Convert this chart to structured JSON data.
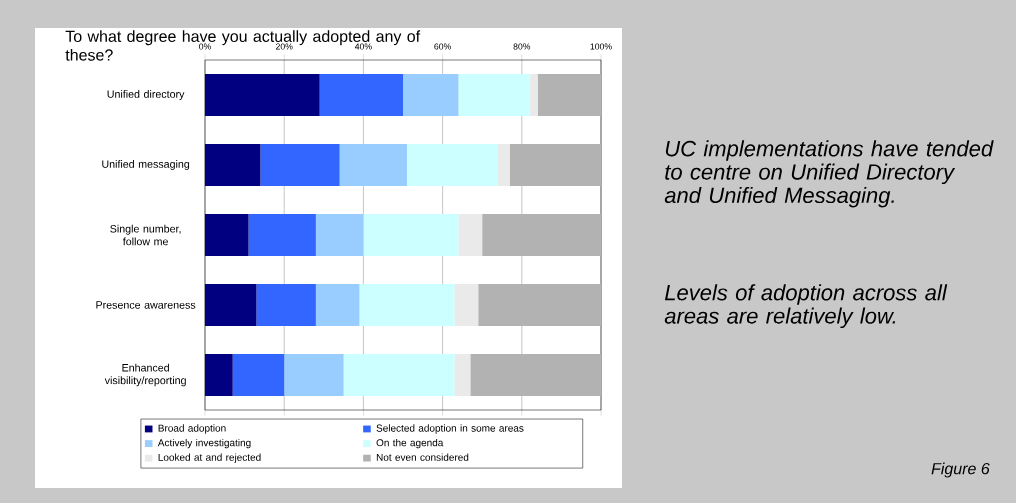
{
  "chart_data": {
    "type": "bar",
    "orientation": "horizontal",
    "stacked": true,
    "title": "To what degree have you actually adopted any of these?",
    "categories": [
      "Unified directory",
      "Unified messaging",
      "Single number, follow me",
      "Presence awareness",
      "Enhanced visibility/reporting"
    ],
    "series": [
      {
        "name": "Broad adoption",
        "color": "#000080",
        "values": [
          29,
          14,
          11,
          13,
          7
        ]
      },
      {
        "name": "Selected adoption in some areas",
        "color": "#3366ff",
        "values": [
          21,
          20,
          17,
          15,
          13
        ]
      },
      {
        "name": "Actively investigating",
        "color": "#99ccff",
        "values": [
          14,
          17,
          12,
          11,
          15
        ]
      },
      {
        "name": "On the agenda",
        "color": "#ccffff",
        "values": [
          18,
          23,
          24,
          24,
          28
        ]
      },
      {
        "name": "Looked at and rejected",
        "color": "#eaeaea",
        "values": [
          2,
          3,
          6,
          6,
          4
        ]
      },
      {
        "name": "Not even considered",
        "color": "#b2b2b2",
        "values": [
          16,
          23,
          30,
          31,
          33
        ]
      }
    ],
    "xlim": [
      0,
      100
    ],
    "xticks": [
      {
        "value": 0,
        "label": "0%"
      },
      {
        "value": 20,
        "label": "20%"
      },
      {
        "value": 40,
        "label": "40%"
      },
      {
        "value": 60,
        "label": "60%"
      },
      {
        "value": 80,
        "label": "80%"
      },
      {
        "value": 100,
        "label": "100%"
      }
    ],
    "grid": "x",
    "legend": "bottom",
    "annotations": [
      "UC implementations have tended to centre on Unified Directory and Unified Messaging.",
      "Levels of adoption across all areas are relatively low.",
      "Figure 6"
    ]
  }
}
